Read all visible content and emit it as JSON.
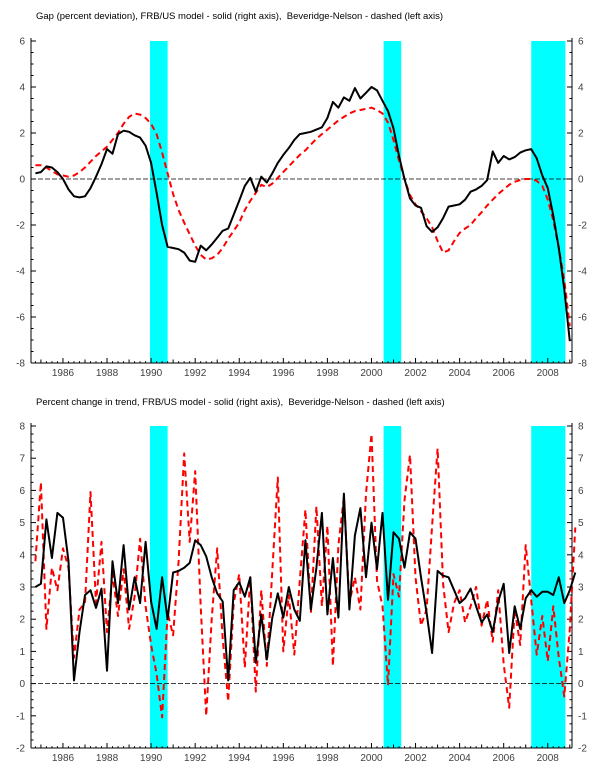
{
  "page": {
    "background": "#ffffff",
    "accent_band_color": "#00ffff",
    "solid_series_color": "#000000",
    "dashed_series_color": "#ff0000"
  },
  "chart_data": [
    {
      "type": "line",
      "title": "Gap (percent deviation), FRB/US model - solid (right axis),  Beveridge-Nelson - dashed (left axis)",
      "xlabel": "",
      "ylabel": "",
      "xlim": [
        1984.55,
        2009.1
      ],
      "ylim": [
        -8,
        6
      ],
      "y_ticks": [
        6,
        4,
        2,
        0,
        -2,
        -4,
        -6,
        -8
      ],
      "y_minor_step": 0.5,
      "x_ticks": [
        1986,
        1988,
        1990,
        1992,
        1994,
        1996,
        1998,
        2000,
        2002,
        2004,
        2006,
        2008
      ],
      "zero_line": 0,
      "grid": false,
      "legend": "in-title",
      "recession_bands": [
        [
          1989.95,
          1990.75
        ],
        [
          2000.55,
          2001.35
        ],
        [
          2007.25,
          2008.8
        ]
      ],
      "x_start": 1984.75,
      "x_step": 0.25,
      "series": [
        {
          "name": "Beveridge-Nelson - dashed (left axis)",
          "style": "dashed",
          "color": "#ff0000",
          "values": [
            0.6,
            0.6,
            0.5,
            0.35,
            0.2,
            0.15,
            0.1,
            0.15,
            0.3,
            0.5,
            0.75,
            1.0,
            1.2,
            1.4,
            1.7,
            2.0,
            2.4,
            2.7,
            2.85,
            2.8,
            2.65,
            2.4,
            1.95,
            1.15,
            0.25,
            -0.65,
            -1.35,
            -1.9,
            -2.4,
            -2.9,
            -3.3,
            -3.5,
            -3.45,
            -3.3,
            -3.0,
            -2.6,
            -2.25,
            -1.9,
            -1.35,
            -0.95,
            -0.6,
            -0.25,
            -0.35,
            -0.2,
            0.05,
            0.3,
            0.55,
            0.8,
            1.05,
            1.25,
            1.5,
            1.75,
            1.95,
            2.15,
            2.35,
            2.55,
            2.7,
            2.85,
            2.95,
            3.0,
            3.05,
            3.1,
            3.0,
            2.85,
            2.45,
            1.7,
            0.8,
            0.0,
            -0.7,
            -1.1,
            -1.4,
            -1.7,
            -2.1,
            -2.7,
            -3.2,
            -3.1,
            -2.7,
            -2.35,
            -2.15,
            -2.0,
            -1.7,
            -1.45,
            -1.15,
            -0.9,
            -0.65,
            -0.45,
            -0.25,
            -0.12,
            -0.05,
            0.0,
            0.0,
            -0.08,
            -0.3,
            -0.9,
            -1.8,
            -3.0,
            -4.4,
            -6.4
          ]
        },
        {
          "name": "FRB/US model - solid (right axis)",
          "style": "solid",
          "color": "#000000",
          "values": [
            0.25,
            0.3,
            0.55,
            0.5,
            0.3,
            0.0,
            -0.45,
            -0.75,
            -0.8,
            -0.75,
            -0.4,
            0.1,
            0.65,
            1.3,
            1.1,
            1.95,
            2.1,
            2.05,
            1.9,
            1.8,
            1.45,
            0.7,
            -0.6,
            -2.0,
            -2.95,
            -3.0,
            -3.05,
            -3.2,
            -3.55,
            -3.6,
            -2.9,
            -3.1,
            -2.85,
            -2.55,
            -2.25,
            -2.15,
            -1.55,
            -0.95,
            -0.3,
            0.05,
            -0.55,
            0.1,
            -0.15,
            0.25,
            0.7,
            1.05,
            1.35,
            1.7,
            1.95,
            2.0,
            2.05,
            2.15,
            2.25,
            2.65,
            3.35,
            3.1,
            3.55,
            3.4,
            3.95,
            3.5,
            3.75,
            4.0,
            3.85,
            3.4,
            2.95,
            2.2,
            1.0,
            0.0,
            -0.85,
            -1.15,
            -1.25,
            -2.05,
            -2.3,
            -2.1,
            -1.7,
            -1.2,
            -1.15,
            -1.1,
            -0.9,
            -0.55,
            -0.45,
            -0.3,
            -0.05,
            1.2,
            0.7,
            1.0,
            0.85,
            0.95,
            1.15,
            1.25,
            1.3,
            0.9,
            0.15,
            -0.4,
            -1.6,
            -3.0,
            -4.8,
            -7.05
          ]
        }
      ]
    },
    {
      "type": "line",
      "title": "Percent change in trend, FRB/US model - solid (right axis),  Beveridge-Nelson - dashed (left axis)",
      "xlabel": "",
      "ylabel": "",
      "xlim": [
        1984.55,
        2009.1
      ],
      "ylim": [
        -2,
        8
      ],
      "y_ticks": [
        8,
        7,
        6,
        5,
        4,
        3,
        2,
        1,
        0,
        -1,
        -2
      ],
      "y_minor_step": 0.25,
      "x_ticks": [
        1986,
        1988,
        1990,
        1992,
        1994,
        1996,
        1998,
        2000,
        2002,
        2004,
        2006,
        2008
      ],
      "zero_line": 0,
      "grid": false,
      "legend": "in-title",
      "recession_bands": [
        [
          1989.95,
          1990.75
        ],
        [
          2000.55,
          2001.35
        ],
        [
          2007.25,
          2008.8
        ]
      ],
      "x_start": 1984.75,
      "x_step": 0.25,
      "series": [
        {
          "name": "Beveridge-Nelson - dashed (left axis)",
          "style": "dashed",
          "color": "#ff0000",
          "values": [
            3.8,
            6.25,
            1.7,
            3.6,
            2.9,
            4.2,
            3.6,
            0.8,
            2.3,
            2.5,
            5.95,
            2.5,
            4.4,
            1.6,
            3.4,
            2.1,
            3.55,
            1.7,
            2.7,
            4.5,
            2.4,
            1.2,
            0.3,
            -1.05,
            2.2,
            1.5,
            3.8,
            7.15,
            4.4,
            6.6,
            2.4,
            -1.0,
            2.0,
            4.2,
            1.4,
            -0.55,
            2.5,
            3.4,
            0.5,
            3.3,
            -0.25,
            2.9,
            0.55,
            3.5,
            6.4,
            1.0,
            2.75,
            0.9,
            3.2,
            5.4,
            2.2,
            5.5,
            2.4,
            4.9,
            0.55,
            4.3,
            5.8,
            2.5,
            3.3,
            2.3,
            5.9,
            7.75,
            3.2,
            2.4,
            -0.05,
            3.4,
            2.7,
            5.7,
            7.1,
            3.3,
            1.8,
            2.3,
            4.9,
            7.3,
            3.1,
            1.6,
            2.5,
            2.9,
            1.9,
            2.4,
            3.0,
            1.8,
            2.6,
            1.3,
            2.9,
            0.6,
            -0.75,
            2.3,
            1.2,
            4.3,
            2.6,
            0.9,
            2.1,
            0.7,
            2.4,
            0.8,
            -0.4,
            1.7,
            4.85
          ]
        },
        {
          "name": "FRB/US model - solid (right axis)",
          "style": "solid",
          "color": "#000000",
          "values": [
            3.0,
            3.1,
            5.1,
            3.9,
            5.3,
            5.15,
            3.8,
            0.1,
            1.6,
            2.75,
            2.9,
            2.35,
            2.95,
            0.4,
            3.8,
            2.5,
            4.3,
            2.3,
            3.3,
            2.5,
            4.4,
            2.55,
            1.7,
            3.3,
            2.0,
            3.45,
            3.5,
            3.6,
            3.75,
            4.45,
            4.3,
            3.95,
            3.3,
            2.8,
            2.55,
            0.1,
            2.9,
            3.15,
            2.7,
            3.3,
            0.65,
            2.15,
            0.75,
            2.05,
            2.8,
            2.05,
            3.0,
            2.3,
            1.95,
            4.45,
            2.3,
            3.6,
            5.3,
            2.15,
            3.9,
            2.05,
            5.9,
            2.3,
            4.6,
            5.45,
            3.3,
            5.0,
            3.55,
            5.3,
            2.6,
            4.7,
            4.5,
            3.6,
            4.7,
            4.5,
            3.3,
            2.2,
            0.95,
            3.5,
            3.35,
            3.3,
            2.9,
            2.5,
            2.65,
            2.95,
            2.4,
            1.9,
            2.15,
            1.6,
            2.55,
            3.1,
            0.95,
            2.4,
            1.7,
            2.65,
            2.9,
            2.7,
            2.85,
            2.85,
            2.75,
            3.3,
            2.5,
            2.9,
            3.45
          ]
        }
      ]
    }
  ]
}
